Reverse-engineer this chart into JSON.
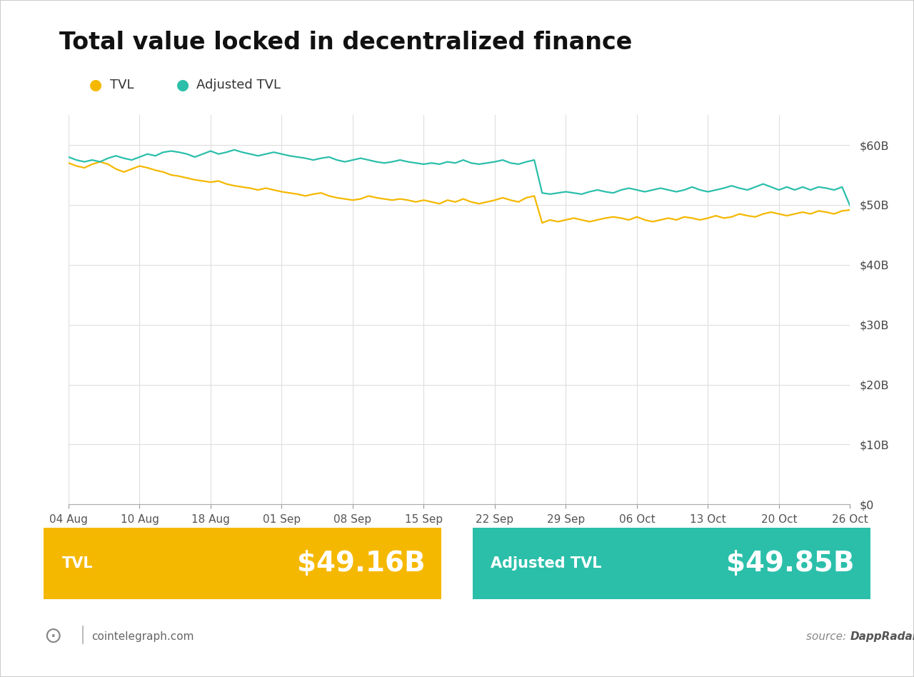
{
  "title": "Total value locked in decentralized finance",
  "title_fontsize": 24,
  "title_fontweight": "bold",
  "tvl_color": "#F5B800",
  "adj_tvl_color": "#2BBFAA",
  "background_color": "#FFFFFF",
  "grid_color": "#DEDEDE",
  "x_labels": [
    "04 Aug",
    "10 Aug",
    "18 Aug",
    "01 Sep",
    "08 Sep",
    "15 Sep",
    "22 Sep",
    "29 Sep",
    "06 Oct",
    "13 Oct",
    "20 Oct",
    "26 Oct"
  ],
  "y_ticks": [
    0,
    10,
    20,
    30,
    40,
    50,
    60
  ],
  "y_tick_labels": [
    "$0",
    "$10B",
    "$20B",
    "$30B",
    "$40B",
    "$50B",
    "$60B"
  ],
  "legend_tvl": "TVL",
  "legend_adj": "Adjusted TVL",
  "tvl_value": "$49.16B",
  "adj_tvl_value": "$49.85B",
  "tvl_box_color": "#F5B800",
  "adj_box_color": "#2BBFAA",
  "footer_left": "cointelegraph.com",
  "footer_right": "source: DappRadar",
  "tvl_data": [
    57.0,
    56.5,
    56.2,
    56.8,
    57.2,
    56.8,
    56.0,
    55.5,
    56.0,
    56.5,
    56.2,
    55.8,
    55.5,
    55.0,
    54.8,
    54.5,
    54.2,
    54.0,
    53.8,
    54.0,
    53.5,
    53.2,
    53.0,
    52.8,
    52.5,
    52.8,
    52.5,
    52.2,
    52.0,
    51.8,
    51.5,
    51.8,
    52.0,
    51.5,
    51.2,
    51.0,
    50.8,
    51.0,
    51.5,
    51.2,
    51.0,
    50.8,
    51.0,
    50.8,
    50.5,
    50.8,
    50.5,
    50.2,
    50.8,
    50.5,
    51.0,
    50.5,
    50.2,
    50.5,
    50.8,
    51.2,
    50.8,
    50.5,
    51.2,
    51.5,
    47.0,
    47.5,
    47.2,
    47.5,
    47.8,
    47.5,
    47.2,
    47.5,
    47.8,
    48.0,
    47.8,
    47.5,
    48.0,
    47.5,
    47.2,
    47.5,
    47.8,
    47.5,
    48.0,
    47.8,
    47.5,
    47.8,
    48.2,
    47.8,
    48.0,
    48.5,
    48.2,
    48.0,
    48.5,
    48.8,
    48.5,
    48.2,
    48.5,
    48.8,
    48.5,
    49.0,
    48.8,
    48.5,
    49.0,
    49.16
  ],
  "adj_tvl_data": [
    58.0,
    57.5,
    57.2,
    57.5,
    57.2,
    57.8,
    58.2,
    57.8,
    57.5,
    58.0,
    58.5,
    58.2,
    58.8,
    59.0,
    58.8,
    58.5,
    58.0,
    58.5,
    59.0,
    58.5,
    58.8,
    59.2,
    58.8,
    58.5,
    58.2,
    58.5,
    58.8,
    58.5,
    58.2,
    58.0,
    57.8,
    57.5,
    57.8,
    58.0,
    57.5,
    57.2,
    57.5,
    57.8,
    57.5,
    57.2,
    57.0,
    57.2,
    57.5,
    57.2,
    57.0,
    56.8,
    57.0,
    56.8,
    57.2,
    57.0,
    57.5,
    57.0,
    56.8,
    57.0,
    57.2,
    57.5,
    57.0,
    56.8,
    57.2,
    57.5,
    52.0,
    51.8,
    52.0,
    52.2,
    52.0,
    51.8,
    52.2,
    52.5,
    52.2,
    52.0,
    52.5,
    52.8,
    52.5,
    52.2,
    52.5,
    52.8,
    52.5,
    52.2,
    52.5,
    53.0,
    52.5,
    52.2,
    52.5,
    52.8,
    53.2,
    52.8,
    52.5,
    53.0,
    53.5,
    53.0,
    52.5,
    53.0,
    52.5,
    53.0,
    52.5,
    53.0,
    52.8,
    52.5,
    53.0,
    49.85
  ]
}
